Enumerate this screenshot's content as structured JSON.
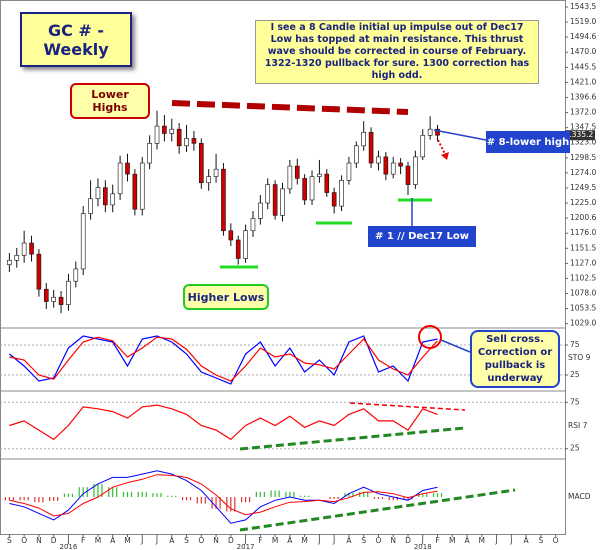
{
  "chart_data": [
    {
      "type": "candlestick",
      "title": "GC # - Weekly",
      "note": "I see a 8 Candle initial up impulse out of Dec17 Low has topped at main resistance. This thrust wave should be corrected in course of February. 1322-1320 pullback for sure. 1300 correction has high odd.",
      "annotations": [
        "Lower Highs",
        "Higher Lows",
        "# 8-lower high",
        "# 1 // Dec17 Low"
      ],
      "last_price": 1335.2,
      "up_color": "#ffffff",
      "down_color": "#d00000",
      "xlim": [
        -0.5,
        37.5
      ],
      "ylim": [
        1022,
        1550
      ],
      "yticks": [
        1543.5,
        {
          "value": 1519.0,
          "label": "1519.0"
        },
        1494.6,
        {
          "value": 1470.0,
          "label": "1470.0"
        },
        1445.5,
        {
          "value": 1421.0,
          "label": "1421.0"
        },
        1396.6,
        {
          "value": 1372.0,
          "label": "1372.0"
        },
        1347.5,
        {
          "value": 1323.0,
          "label": "1323.0"
        },
        1298.5,
        {
          "value": 1274.0,
          "label": "1274.0"
        },
        1249.5,
        {
          "value": 1225.0,
          "label": "1225.0"
        },
        1200.6,
        {
          "value": 1176.0,
          "label": "1176.0"
        },
        1151.5,
        {
          "value": 1127.0,
          "label": "1127.0"
        },
        1102.5,
        {
          "value": 1078.0,
          "label": "1078.0"
        },
        1053.5,
        {
          "value": 1029.0,
          "label": "1029.0"
        }
      ],
      "x": [
        0,
        0.5,
        1,
        1.5,
        2,
        2.5,
        3,
        3.5,
        4,
        4.5,
        5,
        5.5,
        6,
        6.5,
        7,
        7.5,
        8,
        8.5,
        9,
        9.5,
        10,
        10.5,
        11,
        11.5,
        12,
        12.5,
        13,
        13.5,
        14,
        14.5,
        15,
        15.5,
        16,
        16.5,
        17,
        17.5,
        18,
        18.5,
        19,
        19.5,
        20,
        20.5,
        21,
        21.5,
        22,
        22.5,
        23,
        23.5,
        24,
        24.5,
        25,
        25.5,
        26,
        26.5,
        27,
        27.5,
        28,
        28.5,
        29
      ],
      "open": [
        1125,
        1132,
        1140,
        1160,
        1142,
        1085,
        1065,
        1072,
        1060,
        1098,
        1118,
        1208,
        1232,
        1250,
        1222,
        1240,
        1290,
        1272,
        1215,
        1290,
        1322,
        1350,
        1338,
        1345,
        1318,
        1330,
        1322,
        1258,
        1268,
        1280,
        1180,
        1165,
        1135,
        1180,
        1200,
        1225,
        1255,
        1205,
        1248,
        1285,
        1265,
        1230,
        1268,
        1272,
        1242,
        1220,
        1262,
        1290,
        1318,
        1340,
        1290,
        1300,
        1272,
        1290,
        1285,
        1255,
        1300,
        1335,
        1345
      ],
      "high": [
        1144,
        1152,
        1180,
        1172,
        1150,
        1095,
        1084,
        1082,
        1110,
        1130,
        1220,
        1262,
        1265,
        1262,
        1255,
        1302,
        1305,
        1280,
        1300,
        1335,
        1375,
        1368,
        1362,
        1355,
        1352,
        1342,
        1330,
        1280,
        1305,
        1290,
        1192,
        1172,
        1190,
        1212,
        1238,
        1265,
        1262,
        1258,
        1295,
        1297,
        1272,
        1278,
        1295,
        1280,
        1250,
        1270,
        1300,
        1325,
        1358,
        1348,
        1310,
        1308,
        1300,
        1298,
        1292,
        1310,
        1345,
        1366,
        1352
      ],
      "low": [
        1113,
        1120,
        1128,
        1130,
        1073,
        1053,
        1055,
        1046,
        1050,
        1088,
        1108,
        1198,
        1220,
        1210,
        1210,
        1230,
        1260,
        1205,
        1205,
        1280,
        1312,
        1325,
        1325,
        1305,
        1308,
        1310,
        1248,
        1245,
        1258,
        1172,
        1155,
        1125,
        1128,
        1170,
        1190,
        1215,
        1198,
        1195,
        1240,
        1255,
        1222,
        1222,
        1258,
        1235,
        1208,
        1212,
        1255,
        1282,
        1310,
        1282,
        1278,
        1262,
        1265,
        1272,
        1238,
        1248,
        1295,
        1328,
        1325
      ],
      "close": [
        1132,
        1140,
        1160,
        1142,
        1085,
        1065,
        1072,
        1060,
        1098,
        1118,
        1208,
        1232,
        1250,
        1222,
        1240,
        1290,
        1272,
        1215,
        1290,
        1322,
        1350,
        1338,
        1345,
        1318,
        1330,
        1322,
        1258,
        1268,
        1280,
        1180,
        1165,
        1135,
        1180,
        1200,
        1225,
        1255,
        1205,
        1248,
        1285,
        1265,
        1230,
        1268,
        1272,
        1242,
        1220,
        1262,
        1290,
        1318,
        1340,
        1290,
        1300,
        1272,
        1290,
        1285,
        1255,
        1300,
        1335,
        1345,
        1335.2
      ]
    },
    {
      "type": "line",
      "label": "STO 9",
      "note": "Sell cross. Correction or pullback is underway",
      "xlim": [
        -0.5,
        37.5
      ],
      "ylim": [
        0,
        100
      ],
      "yticks": [
        25,
        75
      ],
      "x": [
        0,
        1,
        2,
        3,
        4,
        5,
        6,
        7,
        8,
        9,
        10,
        11,
        12,
        13,
        14,
        15,
        16,
        17,
        18,
        19,
        20,
        21,
        22,
        23,
        24,
        25,
        26,
        27,
        28,
        29
      ],
      "series": [
        {
          "color": "#0000ff",
          "values": [
            60,
            40,
            15,
            20,
            70,
            90,
            85,
            80,
            40,
            85,
            90,
            80,
            60,
            30,
            20,
            10,
            60,
            80,
            40,
            70,
            30,
            50,
            25,
            80,
            90,
            30,
            40,
            15,
            80,
            85
          ]
        },
        {
          "color": "#ff0000",
          "values": [
            55,
            50,
            25,
            18,
            50,
            80,
            88,
            82,
            55,
            70,
            88,
            85,
            68,
            40,
            25,
            15,
            40,
            70,
            55,
            60,
            45,
            42,
            35,
            60,
            85,
            50,
            35,
            25,
            55,
            82
          ]
        }
      ]
    },
    {
      "type": "line",
      "label": "RSI 7",
      "xlim": [
        -0.5,
        37.5
      ],
      "ylim": [
        15,
        85
      ],
      "yticks": [
        25,
        75
      ],
      "x": [
        0,
        1,
        2,
        3,
        4,
        5,
        6,
        7,
        8,
        9,
        10,
        11,
        12,
        13,
        14,
        15,
        16,
        17,
        18,
        19,
        20,
        21,
        22,
        23,
        24,
        25,
        26,
        27,
        28,
        29
      ],
      "series": [
        {
          "color": "#ff0000",
          "values": [
            50,
            55,
            45,
            35,
            50,
            70,
            68,
            65,
            58,
            70,
            72,
            68,
            62,
            50,
            45,
            35,
            50,
            58,
            50,
            60,
            48,
            55,
            50,
            62,
            68,
            55,
            55,
            45,
            68,
            62
          ]
        }
      ]
    },
    {
      "type": "combo",
      "label": "MACD",
      "xlim": [
        -0.5,
        37.5
      ],
      "ylim": [
        -55,
        55
      ],
      "xticks": [
        {
          "value": 0,
          "label": "S"
        },
        {
          "value": 1,
          "label": "O"
        },
        {
          "value": 2,
          "label": "N"
        },
        {
          "value": 3,
          "label": "D"
        },
        {
          "value": 4,
          "label": "J"
        },
        {
          "value": 5,
          "label": "F"
        },
        {
          "value": 6,
          "label": "M"
        },
        {
          "value": 7,
          "label": "A"
        },
        {
          "value": 8,
          "label": "M"
        },
        {
          "value": 9,
          "label": "J"
        },
        {
          "value": 10,
          "label": "J"
        },
        {
          "value": 11,
          "label": "A"
        },
        {
          "value": 12,
          "label": "S"
        },
        {
          "value": 13,
          "label": "O"
        },
        {
          "value": 14,
          "label": "N"
        },
        {
          "value": 15,
          "label": "D"
        },
        {
          "value": 16,
          "label": "J"
        },
        {
          "value": 17,
          "label": "F"
        },
        {
          "value": 18,
          "label": "M"
        },
        {
          "value": 19,
          "label": "A"
        },
        {
          "value": 20,
          "label": "M"
        },
        {
          "value": 21,
          "label": "J"
        },
        {
          "value": 22,
          "label": "J"
        },
        {
          "value": 23,
          "label": "A"
        },
        {
          "value": 24,
          "label": "S"
        },
        {
          "value": 25,
          "label": "O"
        },
        {
          "value": 26,
          "label": "N"
        },
        {
          "value": 27,
          "label": "D"
        },
        {
          "value": 28,
          "label": "J"
        },
        {
          "value": 29,
          "label": "F"
        },
        {
          "value": 30,
          "label": "M"
        },
        {
          "value": 31,
          "label": "A"
        },
        {
          "value": 32,
          "label": "M"
        },
        {
          "value": 33,
          "label": "J"
        },
        {
          "value": 34,
          "label": "J"
        },
        {
          "value": 35,
          "label": "A"
        },
        {
          "value": 36,
          "label": "S"
        },
        {
          "value": 37,
          "label": "O"
        }
      ],
      "year_ticks": [
        {
          "value": 4,
          "label": "2016"
        },
        {
          "value": 16,
          "label": "2017"
        },
        {
          "value": 28,
          "label": "2018"
        }
      ],
      "x": [
        0,
        1,
        2,
        3,
        4,
        5,
        6,
        7,
        8,
        9,
        10,
        11,
        12,
        13,
        14,
        15,
        16,
        17,
        18,
        19,
        20,
        21,
        22,
        23,
        24,
        25,
        26,
        27,
        28,
        29
      ],
      "series": [
        {
          "type": "bar",
          "color": "#33bb33",
          "negative_color": "#dd3333",
          "values": [
            -5,
            -5,
            -8,
            -6,
            5,
            15,
            20,
            15,
            8,
            8,
            6,
            2,
            -5,
            -10,
            -18,
            -22,
            -8,
            8,
            10,
            8,
            2,
            0,
            -3,
            6,
            8,
            -3,
            -5,
            -4,
            5,
            6
          ]
        },
        {
          "type": "line",
          "color": "#0000ff",
          "values": [
            -10,
            -15,
            -25,
            -35,
            -20,
            5,
            20,
            30,
            30,
            35,
            40,
            35,
            25,
            10,
            -15,
            -40,
            -35,
            -15,
            -5,
            0,
            -5,
            -5,
            -10,
            5,
            15,
            5,
            0,
            -5,
            10,
            15
          ]
        },
        {
          "type": "line",
          "color": "#ff0000",
          "values": [
            -5,
            -10,
            -17,
            -29,
            -25,
            -10,
            0,
            15,
            22,
            27,
            34,
            33,
            30,
            20,
            3,
            -18,
            -27,
            -23,
            -15,
            -8,
            -7,
            -5,
            -7,
            -1,
            7,
            8,
            5,
            -1,
            5,
            9
          ]
        }
      ]
    }
  ]
}
